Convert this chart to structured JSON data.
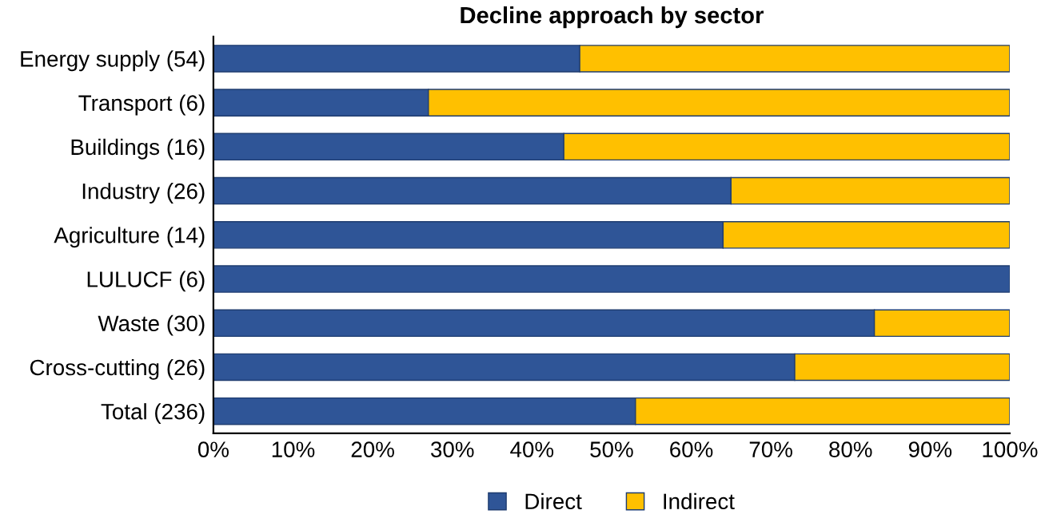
{
  "chart_data": {
    "type": "bar",
    "title": "Decline approach by sector",
    "orientation": "horizontal",
    "stacked": true,
    "categories": [
      "Energy supply (54)",
      "Transport (6)",
      "Buildings (16)",
      "Industry (26)",
      "Agriculture (14)",
      "LULUCF (6)",
      "Waste (30)",
      "Cross-cutting (26)",
      "Total (236)"
    ],
    "series": [
      {
        "name": "Direct",
        "color": "#2f5597",
        "values": [
          46,
          27,
          44,
          65,
          64,
          100,
          83,
          73,
          53
        ]
      },
      {
        "name": "Indirect",
        "color": "#ffc000",
        "values": [
          54,
          73,
          56,
          35,
          36,
          null,
          17,
          27,
          47
        ]
      }
    ],
    "xlim": [
      0,
      100
    ],
    "xticks": [
      {
        "value": 0,
        "label": "0%"
      },
      {
        "value": 10,
        "label": "10%"
      },
      {
        "value": 20,
        "label": "20%"
      },
      {
        "value": 30,
        "label": "30%"
      },
      {
        "value": 40,
        "label": "40%"
      },
      {
        "value": 50,
        "label": "50%"
      },
      {
        "value": 60,
        "label": "60%"
      },
      {
        "value": 70,
        "label": "70%"
      },
      {
        "value": 80,
        "label": "80%"
      },
      {
        "value": 90,
        "label": "90%"
      },
      {
        "value": 100,
        "label": "100%"
      }
    ],
    "grid": false,
    "legend": "bottom"
  }
}
